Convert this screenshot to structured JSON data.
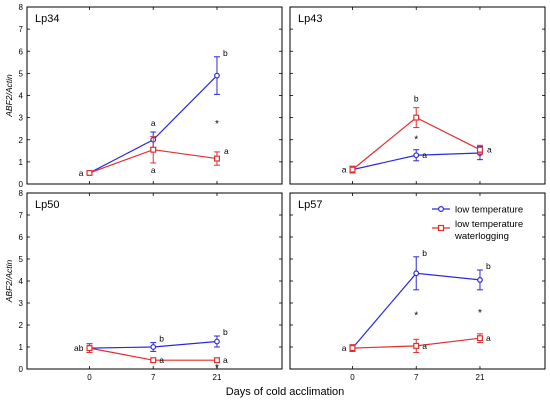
{
  "figure": {
    "xlabel": "Days of cold acclimation",
    "legend_position": "top-right of bottom-right panel"
  },
  "colors": {
    "low_temperature": "#2a2adb",
    "low_temperature_waterlogging": "#e03030"
  },
  "chart_data": [
    {
      "type": "line",
      "title": "Lp34",
      "ylabel": "ABF2/Actin",
      "x": [
        "0",
        "7",
        "21"
      ],
      "ylim": [
        0,
        8
      ],
      "yticks": [
        "0",
        "1",
        "2",
        "3",
        "4",
        "5",
        "6",
        "7",
        "8"
      ],
      "series": [
        {
          "name": "low temperature",
          "values": [
            0.5,
            2.0,
            4.9
          ],
          "errors": [
            0.05,
            0.35,
            0.85
          ],
          "letters": [
            "a",
            "a",
            "b"
          ]
        },
        {
          "name": "low temperature waterlogging",
          "values": [
            0.5,
            1.55,
            1.15
          ],
          "errors": [
            0.05,
            0.6,
            0.3
          ],
          "letters": [
            "",
            "a",
            "a"
          ]
        }
      ],
      "stars": [
        "",
        "",
        "*"
      ]
    },
    {
      "type": "line",
      "title": "Lp43",
      "ylabel": "",
      "x": [
        "0",
        "7",
        "21"
      ],
      "ylim": [
        0,
        8
      ],
      "yticks": [
        "0",
        "1",
        "2",
        "3",
        "4",
        "5",
        "6",
        "7",
        "8"
      ],
      "series": [
        {
          "name": "low temperature",
          "values": [
            0.65,
            1.3,
            1.4
          ],
          "errors": [
            0.15,
            0.25,
            0.3
          ],
          "letters": [
            "",
            "a",
            ""
          ]
        },
        {
          "name": "low temperature waterlogging",
          "values": [
            0.65,
            3.0,
            1.55
          ],
          "errors": [
            0.15,
            0.45,
            0.2
          ],
          "letters": [
            "a",
            "b",
            "a"
          ]
        }
      ],
      "stars": [
        "",
        "*",
        ""
      ]
    },
    {
      "type": "line",
      "title": "Lp50",
      "ylabel": "ABF2/Actin",
      "x": [
        "0",
        "7",
        "21"
      ],
      "ylim": [
        0,
        8
      ],
      "yticks": [
        "0",
        "1",
        "2",
        "3",
        "4",
        "5",
        "6",
        "7",
        "8"
      ],
      "series": [
        {
          "name": "low temperature",
          "values": [
            0.95,
            1.0,
            1.25
          ],
          "errors": [
            0.2,
            0.2,
            0.25
          ],
          "letters": [
            "ab",
            "b",
            "b"
          ]
        },
        {
          "name": "low temperature waterlogging",
          "values": [
            0.95,
            0.4,
            0.4
          ],
          "errors": [
            0.2,
            0.05,
            0.05
          ],
          "letters": [
            "",
            "a",
            "a"
          ]
        }
      ],
      "stars": [
        "",
        "",
        "*"
      ]
    },
    {
      "type": "line",
      "title": "Lp57",
      "ylabel": "",
      "x": [
        "0",
        "7",
        "21"
      ],
      "ylim": [
        0,
        8
      ],
      "yticks": [
        "0",
        "1",
        "2",
        "3",
        "4",
        "5",
        "6",
        "7",
        "8"
      ],
      "series": [
        {
          "name": "low temperature",
          "values": [
            0.95,
            4.35,
            4.05
          ],
          "errors": [
            0.15,
            0.75,
            0.45
          ],
          "letters": [
            "",
            "b",
            "b"
          ]
        },
        {
          "name": "low temperature waterlogging",
          "values": [
            0.95,
            1.05,
            1.4
          ],
          "errors": [
            0.15,
            0.3,
            0.2
          ],
          "letters": [
            "a",
            "a",
            "a"
          ]
        }
      ],
      "stars": [
        "",
        "*",
        "*"
      ],
      "legend": [
        "low temperature",
        "low temperature",
        "waterlogging"
      ]
    }
  ]
}
